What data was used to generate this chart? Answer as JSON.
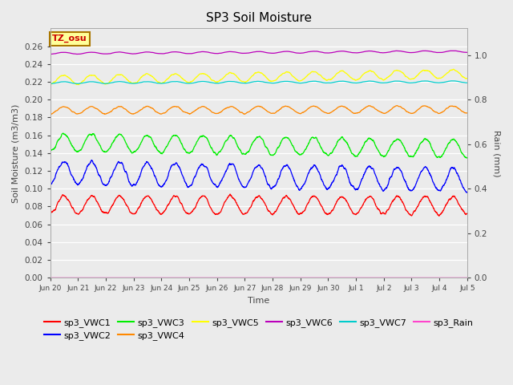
{
  "title": "SP3 Soil Moisture",
  "ylabel_left": "Soil Moisture (m3/m3)",
  "ylabel_right": "Rain (mm)",
  "xlabel": "Time",
  "tz_label": "TZ_osu",
  "ylim_left": [
    0.0,
    0.28
  ],
  "ylim_right": [
    0.0,
    1.12
  ],
  "yticks_left": [
    0.0,
    0.02,
    0.04,
    0.06,
    0.08,
    0.1,
    0.12,
    0.14,
    0.16,
    0.18,
    0.2,
    0.22,
    0.24,
    0.26
  ],
  "yticks_right": [
    0.0,
    0.2,
    0.4,
    0.6,
    0.8,
    1.0
  ],
  "series": [
    {
      "name": "sp3_VWC1",
      "color": "#ff0000",
      "base": 0.082,
      "amp": 0.01,
      "period": 1.0,
      "phase": -1.5,
      "trend": -0.001
    },
    {
      "name": "sp3_VWC2",
      "color": "#0000ff",
      "base": 0.118,
      "amp": 0.013,
      "period": 1.0,
      "phase": -1.5,
      "trend": -0.008
    },
    {
      "name": "sp3_VWC3",
      "color": "#00ee00",
      "base": 0.152,
      "amp": 0.01,
      "period": 1.0,
      "phase": -1.5,
      "trend": -0.007
    },
    {
      "name": "sp3_VWC4",
      "color": "#ff8800",
      "base": 0.188,
      "amp": 0.004,
      "period": 1.0,
      "phase": -1.5,
      "trend": 0.001
    },
    {
      "name": "sp3_VWC5",
      "color": "#ffff00",
      "base": 0.222,
      "amp": 0.005,
      "period": 1.0,
      "phase": -1.5,
      "trend": 0.007
    },
    {
      "name": "sp3_VWC6",
      "color": "#bb00bb",
      "base": 0.252,
      "amp": 0.001,
      "period": 1.0,
      "phase": -1.5,
      "trend": 0.002
    },
    {
      "name": "sp3_VWC7",
      "color": "#00cccc",
      "base": 0.219,
      "amp": 0.001,
      "period": 1.0,
      "phase": -1.5,
      "trend": 0.001
    },
    {
      "name": "sp3_Rain",
      "color": "#ff44cc",
      "base": 0.0,
      "amp": 0.0,
      "period": 1.0,
      "phase": 0.0,
      "trend": 0.0
    }
  ],
  "total_days": 15,
  "n_points": 3000,
  "background_color": "#ebebeb",
  "grid_color": "#ffffff",
  "tick_label_color": "#444444",
  "title_fontsize": 11,
  "axis_label_fontsize": 8,
  "legend_fontsize": 8,
  "xtick_labels": [
    "Jun 20",
    "Jun 21",
    "Jun 22",
    "Jun 23",
    "Jun 24",
    "Jun 25",
    "Jun 26",
    "Jun 27",
    "Jun 28",
    "Jun 29",
    "Jun 30",
    "Jul 1",
    "Jul 2",
    "Jul 3",
    "Jul 4",
    "Jul 5"
  ]
}
